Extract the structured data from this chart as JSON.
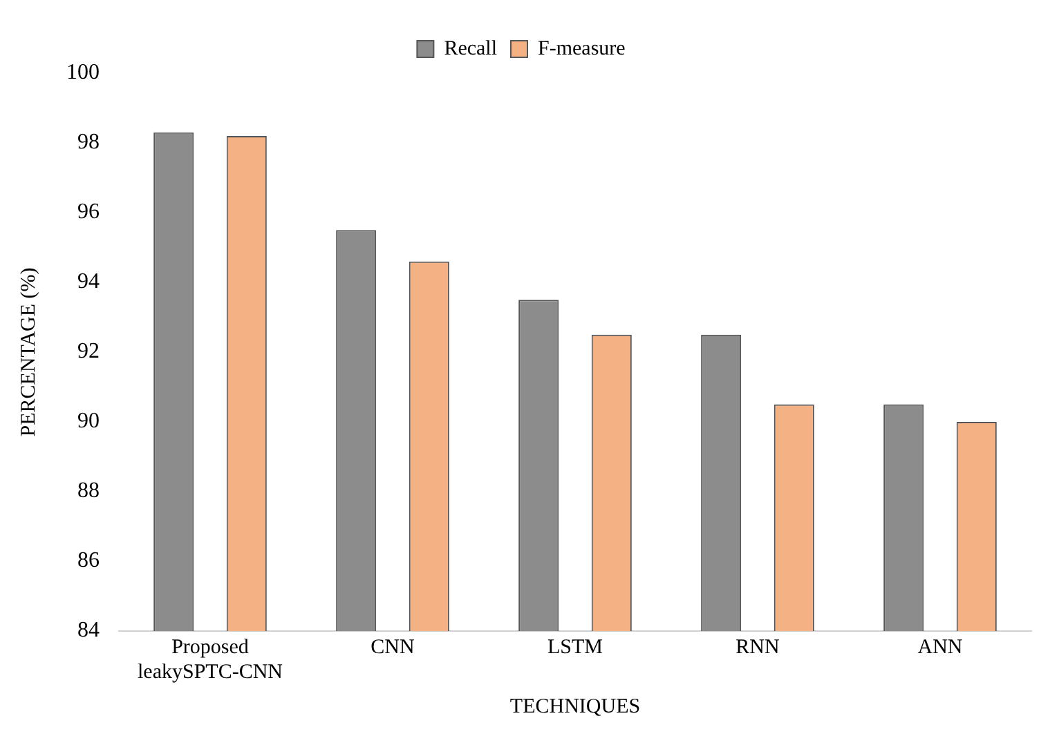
{
  "chart_data": {
    "type": "bar",
    "xlabel": "TECHNIQUES",
    "ylabel": "PERCENTAGE (%)",
    "categories": [
      "Proposed leakySPTC-CNN",
      "CNN",
      "LSTM",
      "RNN",
      "ANN"
    ],
    "series": [
      {
        "name": "Recall",
        "color": "#8c8c8c",
        "values": [
          98.3,
          95.5,
          93.5,
          92.5,
          90.5
        ]
      },
      {
        "name": "F-measure",
        "color": "#f4b183",
        "values": [
          98.2,
          94.6,
          92.5,
          90.5,
          90.0
        ]
      }
    ],
    "ylim": [
      84,
      100
    ],
    "yticks": [
      84,
      86,
      88,
      90,
      92,
      94,
      96,
      98,
      100
    ],
    "grid": false,
    "legend": "top"
  }
}
